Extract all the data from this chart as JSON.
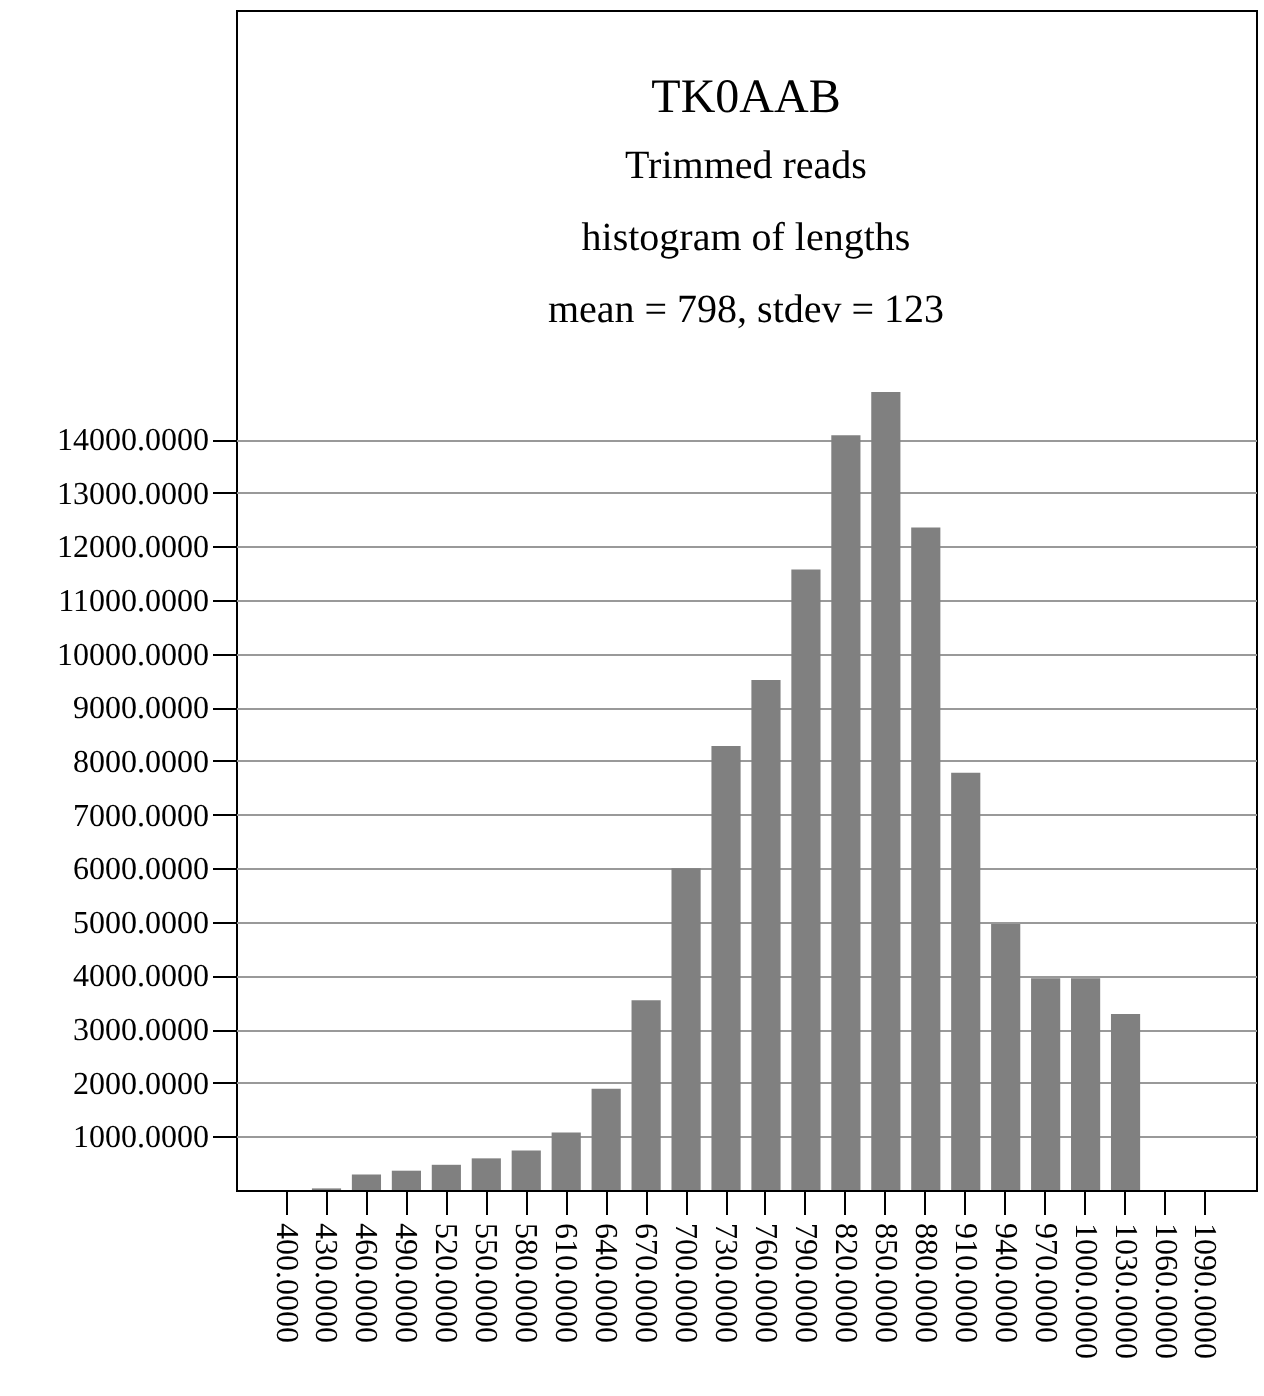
{
  "chart_data": {
    "type": "bar",
    "title": "TK0AAB",
    "subtitle": "Trimmed reads\nhistogram of lengths\nmean = 798, stdev = 123",
    "categories": [
      "400.0000",
      "430.0000",
      "460.0000",
      "490.0000",
      "520.0000",
      "550.0000",
      "580.0000",
      "610.0000",
      "640.0000",
      "670.0000",
      "700.0000",
      "730.0000",
      "760.0000",
      "790.0000",
      "820.0000",
      "850.0000",
      "880.0000",
      "910.0000",
      "940.0000",
      "970.0000",
      "1000.0000",
      "1030.0000",
      "1060.0000",
      "1090.0000"
    ],
    "values": [
      0,
      30,
      290,
      360,
      470,
      590,
      735,
      1070,
      1890,
      3540,
      6000,
      8280,
      9510,
      11570,
      14070,
      14880,
      12350,
      7780,
      4960,
      3950,
      3950,
      3280,
      0,
      0
    ],
    "color": "#808080",
    "ylim": [
      0,
      22000
    ],
    "yticks": [
      {
        "value": 1000,
        "label": "1000.0000"
      },
      {
        "value": 2000,
        "label": "2000.0000"
      },
      {
        "value": 3000,
        "label": "3000.0000"
      },
      {
        "value": 4000,
        "label": "4000.0000"
      },
      {
        "value": 5000,
        "label": "5000.0000"
      },
      {
        "value": 6000,
        "label": "6000.0000"
      },
      {
        "value": 7000,
        "label": "7000.0000"
      },
      {
        "value": 8000,
        "label": "8000.0000"
      },
      {
        "value": 9000,
        "label": "9000.0000"
      },
      {
        "value": 10000,
        "label": "10000.0000"
      },
      {
        "value": 11000,
        "label": "11000.0000"
      },
      {
        "value": 12000,
        "label": "12000.0000"
      },
      {
        "value": 13000,
        "label": "13000.0000"
      },
      {
        "value": 14000,
        "label": "14000.0000"
      }
    ],
    "grid": "y"
  }
}
